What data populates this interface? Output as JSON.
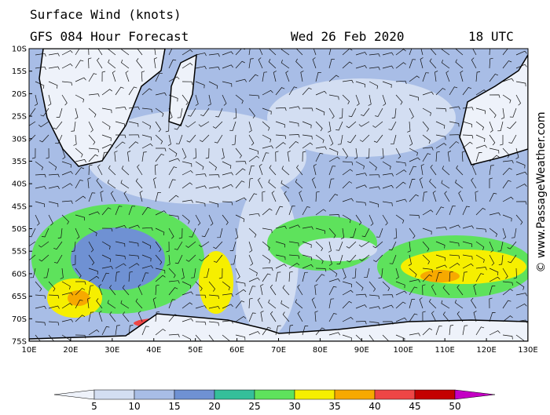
{
  "header": {
    "title": "Surface Wind (knots)",
    "model": "GFS 084 Hour Forecast",
    "date": "Wed 26 Feb 2020",
    "time": "18 UTC"
  },
  "map": {
    "lat_labels": [
      "10S",
      "15S",
      "20S",
      "25S",
      "30S",
      "35S",
      "40S",
      "45S",
      "50S",
      "55S",
      "60S",
      "65S",
      "70S",
      "75S"
    ],
    "lon_labels": [
      "10E",
      "20E",
      "30E",
      "40E",
      "50E",
      "60E",
      "70E",
      "80E",
      "90E",
      "100E",
      "110E",
      "120E",
      "130E"
    ]
  },
  "colorbar": {
    "ticks": [
      5,
      10,
      15,
      20,
      25,
      30,
      35,
      40,
      45,
      50
    ],
    "colors": [
      "#eef2fa",
      "#d3def2",
      "#a8bde6",
      "#6f91d3",
      "#35bf9a",
      "#5ee25c",
      "#f6ef00",
      "#f7a900",
      "#ee4646",
      "#c40000",
      "#c400c4"
    ]
  },
  "credit": "© www.PassageWeather.com"
}
